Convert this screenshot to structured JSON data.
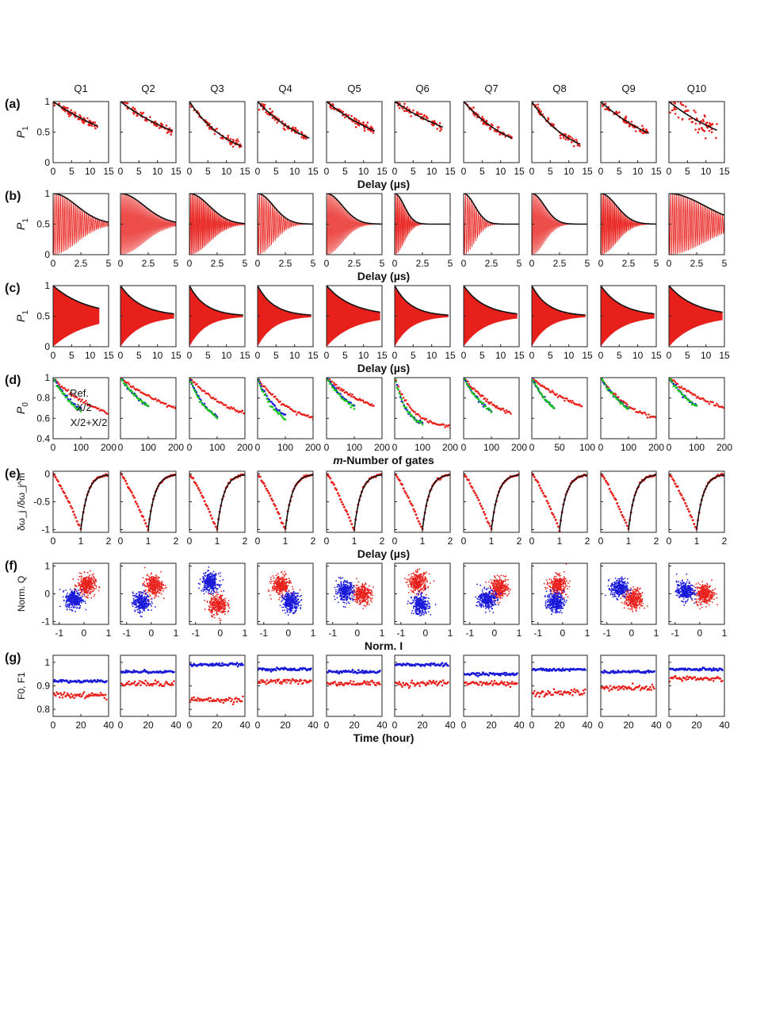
{
  "figure": {
    "qubits": [
      "Q1",
      "Q2",
      "Q3",
      "Q4",
      "Q5",
      "Q6",
      "Q7",
      "Q8",
      "Q9",
      "Q10"
    ],
    "colors": {
      "red": "#e8201c",
      "blue": "#1a1ad8",
      "green": "#19c419",
      "black": "#111111"
    },
    "rows": [
      {
        "label": "(a)",
        "ylabel": "P",
        "ylabel_sub": "1",
        "xlabel": "Delay (µs)",
        "xlim": [
          0,
          15
        ],
        "ylim": [
          0,
          1
        ],
        "yticks": [
          0,
          0.5,
          1
        ],
        "ytick_labels": [
          "0",
          "0.5",
          "1"
        ],
        "xticks": [
          0,
          5,
          10,
          15
        ],
        "xtick_labels": [
          "0",
          "5",
          "10",
          "15"
        ]
      },
      {
        "label": "(b)",
        "ylabel": "P",
        "ylabel_sub": "1",
        "xlabel": "Delay (µs)",
        "xlim": [
          0,
          5
        ],
        "ylim": [
          0,
          1
        ],
        "yticks": [
          0,
          0.5,
          1
        ],
        "ytick_labels": [
          "0",
          "0.5",
          "1"
        ],
        "xticks": [
          0,
          2.5,
          5
        ],
        "xtick_labels": [
          "0",
          "2.5",
          "5"
        ]
      },
      {
        "label": "(c)",
        "ylabel": "P",
        "ylabel_sub": "1",
        "xlabel": "Delay (µs)",
        "xlim": [
          0,
          15
        ],
        "ylim": [
          0,
          1
        ],
        "yticks": [
          0,
          0.5,
          1
        ],
        "ytick_labels": [
          "0",
          "0.5",
          "1"
        ],
        "xticks": [
          0,
          5,
          10,
          15
        ],
        "xtick_labels": [
          "0",
          "5",
          "10",
          "15"
        ]
      },
      {
        "label": "(d)",
        "ylabel": "P",
        "ylabel_sub": "0",
        "xlabel_italic": "m",
        "xlabel": "-Number of gates",
        "xlim": [
          0,
          200
        ],
        "ylim": [
          0.4,
          1
        ],
        "yticks": [
          0.4,
          0.6,
          0.8,
          1
        ],
        "ytick_labels": [
          "0.4",
          "0.6",
          "0.8",
          "1"
        ],
        "xticks": [
          0,
          100,
          200
        ],
        "xtick_labels": [
          "0",
          "100",
          "200"
        ],
        "xtick_labels_q8": [
          "0",
          "50",
          "100"
        ],
        "legend": [
          {
            "text": "Ref.",
            "color": "red"
          },
          {
            "text": "X/2",
            "color": "blue"
          },
          {
            "text": "X/2+X/2",
            "color": "green"
          }
        ]
      },
      {
        "label": "(e)",
        "ylabel": "δω_j /δω_j^m",
        "xlabel": "Delay (µs)",
        "xlim": [
          0,
          2
        ],
        "ylim": [
          -1.05,
          0.05
        ],
        "yticks": [
          -1,
          -0.5,
          0
        ],
        "ytick_labels": [
          "-1",
          "-0.5",
          "0"
        ],
        "xticks": [
          0,
          1,
          2
        ],
        "xtick_labels": [
          "0",
          "1",
          "2"
        ]
      },
      {
        "label": "(f)",
        "ylabel": "Norm. Q",
        "xlabel": "Norm. I",
        "xlim": [
          -1.25,
          1
        ],
        "ylim": [
          -1.1,
          1.1
        ],
        "yticks": [
          -1,
          0,
          1
        ],
        "ytick_labels": [
          "-1",
          "0",
          "1"
        ],
        "xticks": [
          -1,
          0,
          1
        ],
        "xtick_labels": [
          "-1",
          "0",
          "1"
        ]
      },
      {
        "label": "(g)",
        "ylabel": "F0, F1",
        "xlabel": "Time (hour)",
        "xlim": [
          0,
          40
        ],
        "ylim": [
          0.77,
          1.03
        ],
        "yticks": [
          0.8,
          0.9,
          1
        ],
        "ytick_labels": [
          "0.8",
          "0.9",
          "1"
        ],
        "xticks": [
          0,
          20,
          40
        ],
        "xtick_labels": [
          "0",
          "20",
          "40"
        ]
      }
    ]
  },
  "chart_data": {
    "type": "scatter",
    "title": "",
    "panels": {
      "a_T1_decay_end_P1": [
        0.6,
        0.52,
        0.27,
        0.4,
        0.52,
        0.58,
        0.4,
        0.3,
        0.48,
        0.53
      ],
      "a_T1_decay_end_delay_us": [
        12,
        14,
        14,
        14,
        13,
        13,
        13,
        13,
        13,
        13
      ],
      "b_ramsey_envelope_fall_us": [
        3.0,
        3.0,
        2.5,
        2.0,
        2.0,
        1.2,
        1.4,
        1.6,
        2.0,
        4.5
      ],
      "c_spin_echo_end_P1": [
        0.62,
        0.55,
        0.5,
        0.52,
        0.58,
        0.52,
        0.55,
        0.52,
        0.55,
        0.58
      ],
      "d_rb_ref_end_P0": [
        0.65,
        0.7,
        0.65,
        0.6,
        0.72,
        0.52,
        0.65,
        0.72,
        0.6,
        0.7
      ],
      "d_rb_ref_end_m": [
        200,
        200,
        200,
        200,
        170,
        200,
        170,
        90,
        200,
        200
      ],
      "d_rb_x2_end_P0": [
        0.69,
        0.72,
        0.62,
        0.63,
        0.72,
        0.55,
        0.67,
        0.7,
        0.7,
        0.72
      ],
      "d_rb_x2x2_end_P0": [
        0.67,
        0.72,
        0.61,
        0.6,
        0.7,
        0.55,
        0.67,
        0.7,
        0.7,
        0.72
      ],
      "e_delta_omega_min_delay_us": [
        1,
        1,
        1,
        1,
        1,
        1,
        1,
        1,
        1,
        1
      ],
      "f_state0_center_IQ": [
        [
          -0.4,
          -0.2
        ],
        [
          -0.4,
          -0.3
        ],
        [
          -0.4,
          0.4
        ],
        [
          0.1,
          -0.3
        ],
        [
          -0.5,
          0.1
        ],
        [
          -0.2,
          -0.4
        ],
        [
          -0.3,
          -0.2
        ],
        [
          -0.3,
          -0.3
        ],
        [
          -0.5,
          0.2
        ],
        [
          -0.6,
          0.1
        ]
      ],
      "f_state1_center_IQ": [
        [
          0.1,
          0.3
        ],
        [
          0.1,
          0.3
        ],
        [
          -0.1,
          -0.4
        ],
        [
          -0.3,
          0.3
        ],
        [
          0.2,
          0.0
        ],
        [
          -0.3,
          0.4
        ],
        [
          0.2,
          0.2
        ],
        [
          -0.2,
          0.3
        ],
        [
          0.1,
          -0.2
        ],
        [
          0.2,
          0.0
        ]
      ],
      "g_F0_blue": [
        0.92,
        0.96,
        0.99,
        0.97,
        0.96,
        0.99,
        0.95,
        0.97,
        0.96,
        0.97
      ],
      "g_F1_red": [
        0.86,
        0.91,
        0.84,
        0.92,
        0.91,
        0.91,
        0.91,
        0.87,
        0.89,
        0.93
      ]
    }
  }
}
